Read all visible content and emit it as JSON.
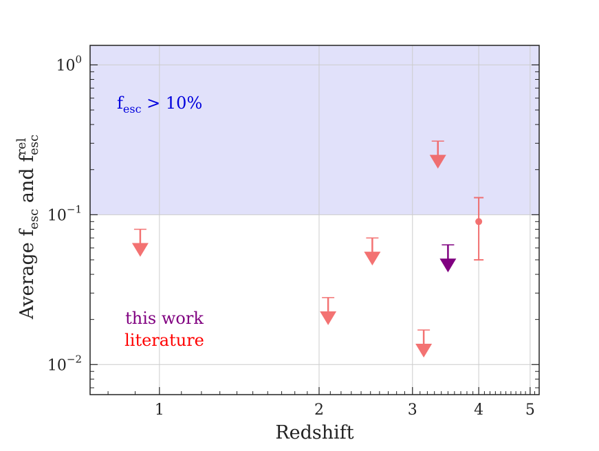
{
  "chart_data": {
    "type": "scatter",
    "xlabel": "Redshift",
    "ylabel": {
      "prefix": "Average f",
      "sub1": "esc",
      "mid": " and f",
      "sub2": "esc",
      "sup2": "rel"
    },
    "xscale": "log",
    "yscale": "log",
    "xlim": [
      0.74,
      5.2
    ],
    "ylim": [
      0.0063,
      1.35
    ],
    "xticks": [
      {
        "value": 1,
        "label": "1"
      },
      {
        "value": 2,
        "label": "2"
      },
      {
        "value": 3,
        "label": "3"
      },
      {
        "value": 4,
        "label": "4"
      },
      {
        "value": 5,
        "label": "5"
      }
    ],
    "yticks": [
      {
        "value": 1,
        "base": "10",
        "exp": "0"
      },
      {
        "value": 0.1,
        "base": "10",
        "exp": "−1"
      },
      {
        "value": 0.01,
        "base": "10",
        "exp": "−2"
      }
    ],
    "grid": true,
    "shaded_region": {
      "y_min": 0.1,
      "color": "#e1e1fa",
      "label": {
        "main": "f",
        "sub": "esc",
        "rest": " > 10%"
      },
      "label_color": "#0000dd"
    },
    "series": [
      {
        "name": "literature",
        "color": "#f25a5a",
        "upper_limits": [
          {
            "x": 0.92,
            "y": 0.08
          },
          {
            "x": 2.08,
            "y": 0.028
          },
          {
            "x": 2.52,
            "y": 0.07
          },
          {
            "x": 3.15,
            "y": 0.017
          },
          {
            "x": 3.35,
            "y": 0.31
          }
        ],
        "points": [
          {
            "x": 4.0,
            "y": 0.09,
            "err_low": 0.05,
            "err_high": 0.13
          }
        ]
      },
      {
        "name": "this work",
        "color": "#800080",
        "upper_limits": [
          {
            "x": 3.5,
            "y": 0.063
          }
        ],
        "points": []
      }
    ],
    "legend": {
      "placement": "lower-left"
    }
  }
}
